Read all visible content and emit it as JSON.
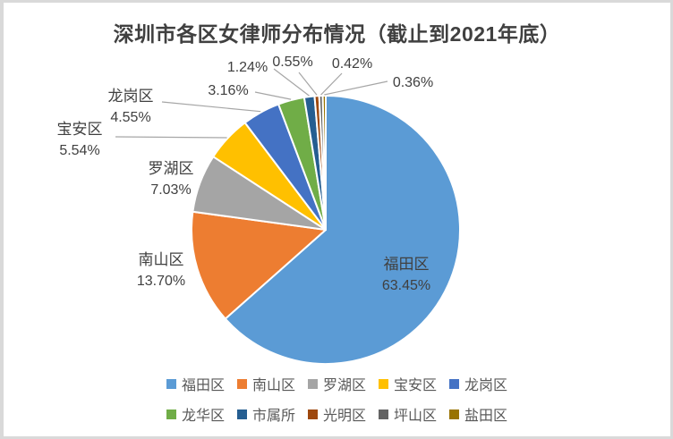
{
  "chart_data": {
    "type": "pie",
    "title": "深圳市各区女律师分布情况（截止到2021年底）",
    "legend_position": "bottom",
    "start_angle_deg": 0,
    "direction": "clockwise",
    "total": 100,
    "categories": [
      "福田区",
      "南山区",
      "罗湖区",
      "宝安区",
      "龙岗区",
      "龙华区",
      "市属所",
      "光明区",
      "坪山区",
      "盐田区"
    ],
    "values": [
      63.45,
      13.7,
      7.03,
      5.54,
      4.55,
      3.16,
      1.24,
      0.55,
      0.42,
      0.36
    ],
    "points": [
      {
        "name": "福田区",
        "value": 63.45,
        "pct_label": "63.45%",
        "color": "#5B9BD5"
      },
      {
        "name": "南山区",
        "value": 13.7,
        "pct_label": "13.70%",
        "color": "#ED7D31"
      },
      {
        "name": "罗湖区",
        "value": 7.03,
        "pct_label": "7.03%",
        "color": "#A5A5A5"
      },
      {
        "name": "宝安区",
        "value": 5.54,
        "pct_label": "5.54%",
        "color": "#FFC000"
      },
      {
        "name": "龙岗区",
        "value": 4.55,
        "pct_label": "4.55%",
        "color": "#4472C4"
      },
      {
        "name": "龙华区",
        "value": 3.16,
        "pct_label": "3.16%",
        "color": "#70AD47"
      },
      {
        "name": "市属所",
        "value": 1.24,
        "pct_label": "1.24%",
        "color": "#255E91"
      },
      {
        "name": "光明区",
        "value": 0.55,
        "pct_label": "0.55%",
        "color": "#9E480E"
      },
      {
        "name": "坪山区",
        "value": 0.42,
        "pct_label": "0.42%",
        "color": "#636363"
      },
      {
        "name": "盐田区",
        "value": 0.36,
        "pct_label": "0.36%",
        "color": "#997300"
      }
    ]
  },
  "colors": {
    "title_text": "#404040",
    "label_text": "#404040",
    "legend_text": "#595959",
    "leader_line": "#A6A6A6",
    "slice_border": "#FFFFFF",
    "frame_border": "#D9D9D9",
    "background": "#FFFFFF"
  }
}
